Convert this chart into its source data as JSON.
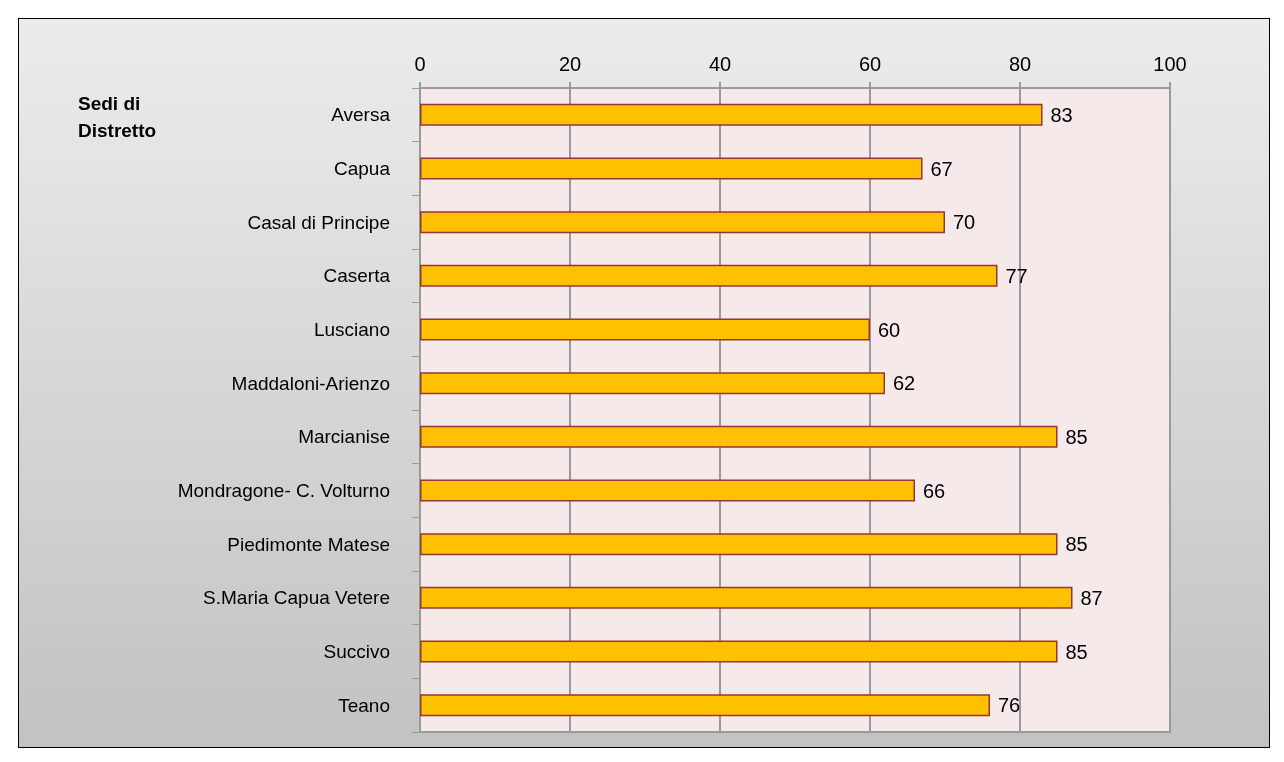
{
  "chart_data": {
    "type": "bar",
    "orientation": "horizontal",
    "ylabel": "Sedi di Distretto",
    "categories": [
      "Aversa",
      "Capua",
      "Casal di Principe",
      "Caserta",
      "Lusciano",
      "Maddaloni-Arienzo",
      "Marcianise",
      "Mondragone- C. Volturno",
      "Piedimonte Matese",
      "S.Maria Capua Vetere",
      "Succivo",
      "Teano"
    ],
    "values": [
      83,
      67,
      70,
      77,
      60,
      62,
      85,
      66,
      85,
      87,
      85,
      76
    ],
    "color": "#ffc000",
    "xlim": [
      0,
      100
    ],
    "xticks": [
      0,
      20,
      40,
      60,
      80,
      100
    ],
    "grid": "x",
    "data_labels": true
  }
}
